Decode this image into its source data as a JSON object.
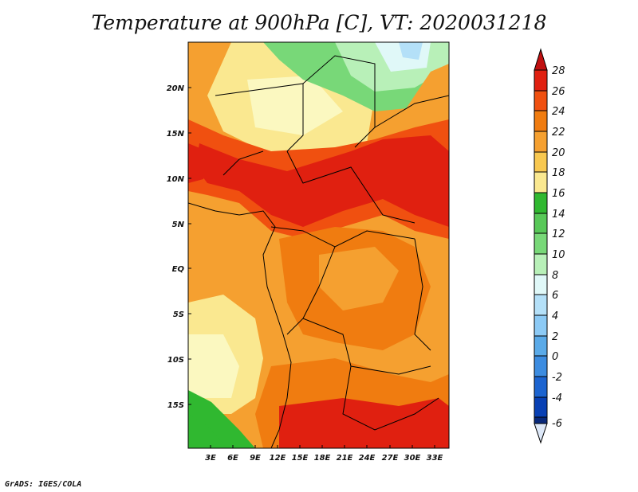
{
  "title": "Temperature at 900hPa [C], VT: 2020031218",
  "footer": "GrADS: IGES/COLA",
  "map": {
    "lat_labels": [
      "20N",
      "15N",
      "10N",
      "5N",
      "EQ",
      "5S",
      "10S",
      "15S"
    ],
    "lon_labels": [
      "3E",
      "6E",
      "9E",
      "12E",
      "15E",
      "18E",
      "21E",
      "24E",
      "27E",
      "30E",
      "33E"
    ]
  },
  "colorbar": {
    "labels": [
      "28",
      "26",
      "24",
      "22",
      "20",
      "18",
      "16",
      "14",
      "12",
      "10",
      "8",
      "6",
      "4",
      "2",
      "0",
      "-2",
      "-4",
      "-6"
    ],
    "colors": {
      "over": "#c01010",
      "c26": "#e02010",
      "c24": "#f05010",
      "c22": "#f07c10",
      "c20": "#f5a030",
      "c18": "#f8c850",
      "c16": "#fae890",
      "c14": "#fbf8c0",
      "c12": "#30b830",
      "c10": "#78d878",
      "c8": "#b8f0b8",
      "c6": "#e0f8f8",
      "c4": "#b4e0f8",
      "c2": "#8ccaf5",
      "c0": "#5aaae8",
      "cm2": "#3c8ce0",
      "cm4": "#1c64d0",
      "cm6": "#0840b4",
      "under": "#08287a",
      "extra": "#dde8f8"
    }
  }
}
